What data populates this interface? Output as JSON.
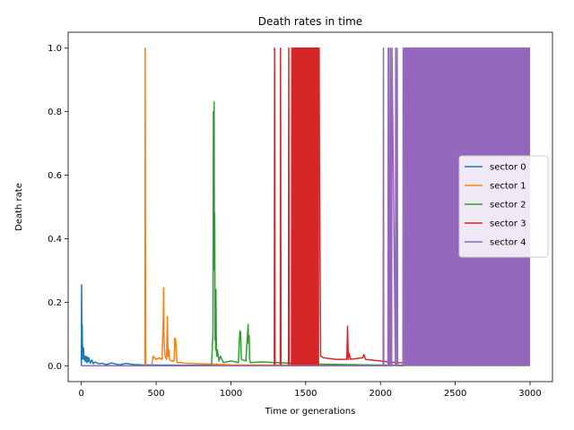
{
  "chart_data": {
    "type": "line",
    "title": "Death rates in time",
    "xlabel": "Time or generations",
    "ylabel": "Death rate",
    "xlim": [
      -88,
      3150
    ],
    "ylim": [
      -0.05,
      1.05
    ],
    "xticks": [
      0,
      500,
      1000,
      1500,
      2000,
      2500,
      3000
    ],
    "yticks": [
      0.0,
      0.2,
      0.4,
      0.6,
      0.8,
      1.0
    ],
    "xtick_labels": [
      "0",
      "500",
      "1000",
      "1500",
      "2000",
      "2500",
      "3000"
    ],
    "ytick_labels": [
      "0.0",
      "0.2",
      "0.4",
      "0.6",
      "0.8",
      "1.0"
    ],
    "grid": false,
    "legend_position": "center-right",
    "series": [
      {
        "name": "sector 0",
        "color": "#1f77b4",
        "x": [
          0,
          2,
          4,
          6,
          8,
          10,
          12,
          15,
          18,
          20,
          25,
          30,
          35,
          40,
          45,
          50,
          60,
          70,
          80,
          90,
          100,
          120,
          140,
          160,
          180,
          200,
          250,
          300,
          350,
          400,
          500,
          1000,
          2000,
          3000
        ],
        "y": [
          0.0,
          0.255,
          0.05,
          0.13,
          0.02,
          0.06,
          0.03,
          0.055,
          0.02,
          0.03,
          0.015,
          0.03,
          0.01,
          0.028,
          0.012,
          0.025,
          0.008,
          0.018,
          0.006,
          0.012,
          0.01,
          0.006,
          0.008,
          0.004,
          0.005,
          0.009,
          0.003,
          0.007,
          0.004,
          0.003,
          0.002,
          0.001,
          0.001,
          0.001
        ]
      },
      {
        "name": "sector 1",
        "color": "#ff7f0e",
        "x": [
          0,
          400,
          425,
          427,
          430,
          432,
          470,
          480,
          500,
          520,
          540,
          548,
          550,
          552,
          555,
          560,
          570,
          575,
          580,
          585,
          590,
          600,
          620,
          625,
          630,
          640,
          660,
          700,
          800,
          900,
          1000,
          2000,
          3000
        ],
        "y": [
          0.0,
          0.0,
          0.0,
          1.0,
          0.0,
          0.0,
          0.0,
          0.03,
          0.02,
          0.025,
          0.02,
          0.16,
          0.245,
          0.11,
          0.06,
          0.03,
          0.02,
          0.155,
          0.03,
          0.05,
          0.02,
          0.015,
          0.015,
          0.087,
          0.085,
          0.01,
          0.01,
          0.008,
          0.006,
          0.005,
          0.003,
          0.001,
          0.001
        ]
      },
      {
        "name": "sector 2",
        "color": "#2ca02c",
        "x": [
          0,
          860,
          870,
          880,
          883,
          886,
          888,
          890,
          892,
          894,
          896,
          898,
          900,
          903,
          906,
          910,
          920,
          930,
          950,
          1000,
          1050,
          1060,
          1065,
          1070,
          1100,
          1115,
          1118,
          1122,
          1125,
          1130,
          1200,
          1300,
          1400,
          1500,
          1600,
          2000,
          3000
        ],
        "y": [
          0.0,
          0.0,
          0.0,
          0.1,
          0.8,
          0.4,
          0.83,
          0.3,
          0.48,
          0.08,
          0.22,
          0.05,
          0.24,
          0.05,
          0.03,
          0.05,
          0.015,
          0.03,
          0.01,
          0.015,
          0.01,
          0.11,
          0.105,
          0.02,
          0.015,
          0.13,
          0.07,
          0.095,
          0.02,
          0.01,
          0.012,
          0.01,
          0.008,
          0.006,
          0.005,
          0.002,
          0.001
        ]
      },
      {
        "name": "sector 3",
        "color": "#d62728",
        "x": [
          0,
          1285,
          1290,
          1292,
          1295,
          1330,
          1332,
          1335,
          1385,
          1387,
          1390,
          1405,
          1407,
          1412,
          1414,
          1420,
          1422,
          1590,
          1592,
          1600,
          1620,
          1700,
          1775,
          1780,
          1785,
          1790,
          1800,
          1880,
          1890,
          1900,
          2000,
          2100,
          3000
        ],
        "y": [
          0.0,
          0.0,
          0.0,
          1.0,
          0.0,
          0.0,
          1.0,
          0.0,
          0.0,
          1.0,
          0.0,
          0.0,
          1.0,
          0.0,
          1.0,
          0.0,
          1.0,
          1.0,
          0.65,
          0.03,
          0.025,
          0.02,
          0.02,
          0.125,
          0.02,
          0.04,
          0.02,
          0.025,
          0.035,
          0.02,
          0.015,
          0.01,
          0.005
        ]
      },
      {
        "name": "sector 4",
        "color": "#9467bd",
        "x": [
          0,
          2018,
          2020,
          2022,
          2050,
          2052,
          2054,
          2056,
          2060,
          2065,
          2067,
          2070,
          2075,
          2077,
          2100,
          2102,
          2110,
          2112,
          2115,
          2150,
          2152,
          2155,
          3000
        ],
        "y": [
          0.0,
          0.0,
          1.0,
          0.0,
          0.0,
          1.0,
          0.0,
          1.0,
          0.0,
          0.0,
          1.0,
          0.0,
          0.0,
          1.0,
          0.0,
          1.0,
          0.0,
          1.0,
          0.0,
          0.0,
          1.0,
          1.0,
          1.0
        ]
      }
    ],
    "bands": [
      {
        "series": "sector 3",
        "x_start": 1414,
        "x_end": 1590,
        "y_min": 0.0,
        "y_max": 1.0
      },
      {
        "series": "sector 4",
        "x_start": 2155,
        "x_end": 3000,
        "y_min": 0.0,
        "y_max": 1.0
      }
    ]
  }
}
